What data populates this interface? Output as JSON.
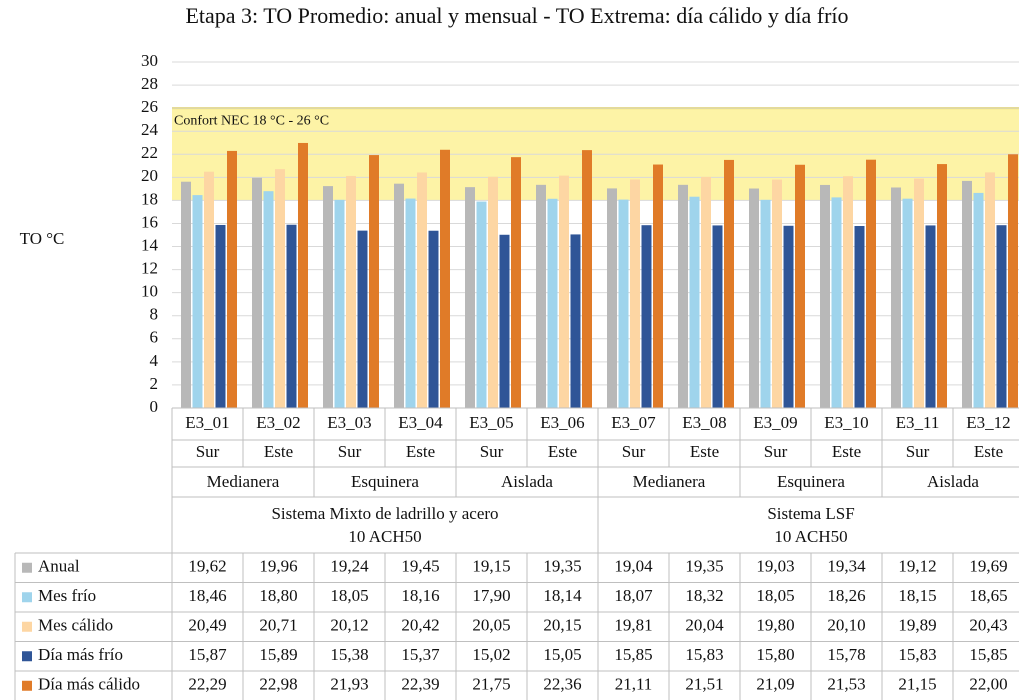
{
  "chart_data": {
    "type": "bar",
    "title": "Etapa 3: TO Promedio: anual y mensual - TO Extrema: día cálido y día frío",
    "y_label": "TO °C",
    "categories": [
      "E3_01",
      "E3_02",
      "E3_03",
      "E3_04",
      "E3_05",
      "E3_06",
      "E3_07",
      "E3_08",
      "E3_09",
      "E3_10",
      "E3_11",
      "E3_12"
    ],
    "orientation": [
      "Sur",
      "Este",
      "Sur",
      "Este",
      "Sur",
      "Este",
      "Sur",
      "Este",
      "Sur",
      "Este",
      "Sur",
      "Este"
    ],
    "typology": [
      "Medianera",
      "Esquinera",
      "Aislada",
      "Medianera",
      "Esquinera",
      "Aislada"
    ],
    "systems": [
      {
        "name": "Sistema Mixto de ladrillo y acero",
        "sub": "10 ACH50"
      },
      {
        "name": "Sistema LSF",
        "sub": "10 ACH50"
      }
    ],
    "band": {
      "label": "Confort NEC 18 °C - 26 °C",
      "range": [
        18,
        26
      ],
      "color": "#fdf3a6"
    },
    "ylim": [
      0,
      30
    ],
    "yticks": [
      0,
      2,
      4,
      6,
      8,
      10,
      12,
      14,
      16,
      18,
      20,
      22,
      24,
      26,
      28,
      30
    ],
    "grid": true,
    "series": [
      {
        "name": "Anual",
        "color": "#b8b8b8",
        "values": [
          19.62,
          19.96,
          19.24,
          19.45,
          19.15,
          19.35,
          19.04,
          19.35,
          19.03,
          19.34,
          19.12,
          19.69
        ],
        "value_labels": [
          "19,62",
          "19,96",
          "19,24",
          "19,45",
          "19,15",
          "19,35",
          "19,04",
          "19,35",
          "19,03",
          "19,34",
          "19,12",
          "19,69"
        ]
      },
      {
        "name": "Mes frío",
        "color": "#9fd4ec",
        "values": [
          18.46,
          18.8,
          18.05,
          18.16,
          17.9,
          18.14,
          18.07,
          18.32,
          18.05,
          18.26,
          18.15,
          18.65
        ],
        "value_labels": [
          "18,46",
          "18,80",
          "18,05",
          "18,16",
          "17,90",
          "18,14",
          "18,07",
          "18,32",
          "18,05",
          "18,26",
          "18,15",
          "18,65"
        ]
      },
      {
        "name": "Mes cálido",
        "color": "#fdd6a3",
        "values": [
          20.49,
          20.71,
          20.12,
          20.42,
          20.05,
          20.15,
          19.81,
          20.04,
          19.8,
          20.1,
          19.89,
          20.43
        ],
        "value_labels": [
          "20,49",
          "20,71",
          "20,12",
          "20,42",
          "20,05",
          "20,15",
          "19,81",
          "20,04",
          "19,80",
          "20,10",
          "19,89",
          "20,43"
        ]
      },
      {
        "name": "Día más frío",
        "color": "#2f5597",
        "values": [
          15.87,
          15.89,
          15.38,
          15.37,
          15.02,
          15.05,
          15.85,
          15.83,
          15.8,
          15.78,
          15.83,
          15.85
        ],
        "value_labels": [
          "15,87",
          "15,89",
          "15,38",
          "15,37",
          "15,02",
          "15,05",
          "15,85",
          "15,83",
          "15,80",
          "15,78",
          "15,83",
          "15,85"
        ]
      },
      {
        "name": "Día más cálido",
        "color": "#e07b28",
        "values": [
          22.29,
          22.98,
          21.93,
          22.39,
          21.75,
          22.36,
          21.11,
          21.51,
          21.09,
          21.53,
          21.15,
          22.0
        ],
        "value_labels": [
          "22,29",
          "22,98",
          "21,93",
          "22,39",
          "21,75",
          "22,36",
          "21,11",
          "21,51",
          "21,09",
          "21,53",
          "21,15",
          "22,00"
        ]
      }
    ]
  }
}
